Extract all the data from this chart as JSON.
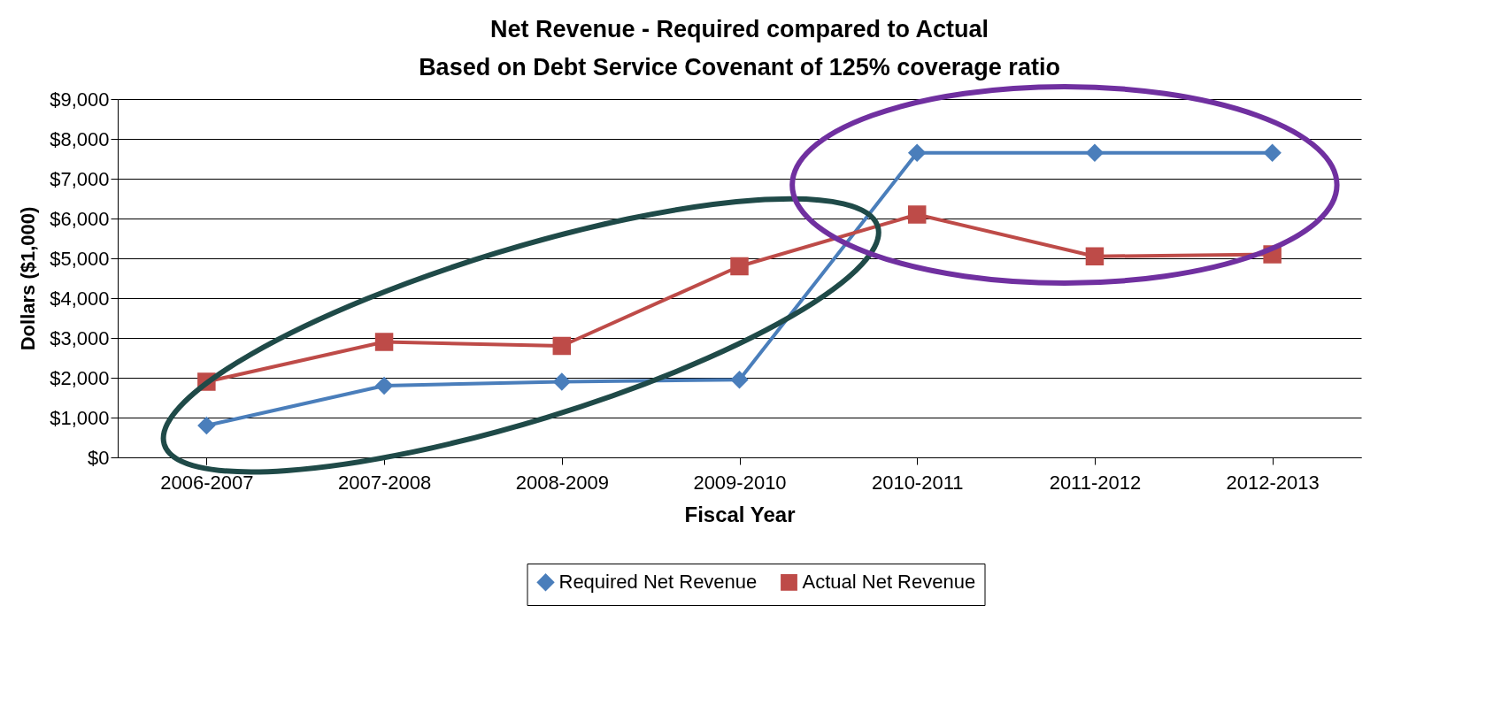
{
  "chart_data": {
    "type": "line",
    "title": "Net Revenue - Required compared to Actual",
    "subtitle": "Based on Debt Service Covenant of 125%  coverage ratio",
    "xlabel": "Fiscal Year",
    "ylabel": "Dollars ($1,000)",
    "categories": [
      "2006-2007",
      "2007-2008",
      "2008-2009",
      "2009-2010",
      "2010-2011",
      "2011-2012",
      "2012-2013"
    ],
    "series": [
      {
        "name": "Required Net Revenue",
        "color": "#4a7ebb",
        "marker": "diamond",
        "values": [
          800,
          1800,
          1900,
          1950,
          7650,
          7650,
          7650
        ]
      },
      {
        "name": "Actual Net Revenue",
        "color": "#be4b48",
        "marker": "square",
        "values": [
          1900,
          2900,
          2800,
          4800,
          6100,
          5050,
          5100
        ]
      }
    ],
    "ylim": [
      0,
      9000
    ],
    "yticks": [
      {
        "value": 0,
        "label": "$0"
      },
      {
        "value": 1000,
        "label": "$1,000"
      },
      {
        "value": 2000,
        "label": "$2,000"
      },
      {
        "value": 3000,
        "label": "$3,000"
      },
      {
        "value": 4000,
        "label": "$4,000"
      },
      {
        "value": 5000,
        "label": "$5,000"
      },
      {
        "value": 6000,
        "label": "$6,000"
      },
      {
        "value": 7000,
        "label": "$7,000"
      },
      {
        "value": 8000,
        "label": "$8,000"
      },
      {
        "value": 9000,
        "label": "$9,000"
      }
    ],
    "grid": "y",
    "legend": "bottom",
    "line_style": "solid"
  }
}
